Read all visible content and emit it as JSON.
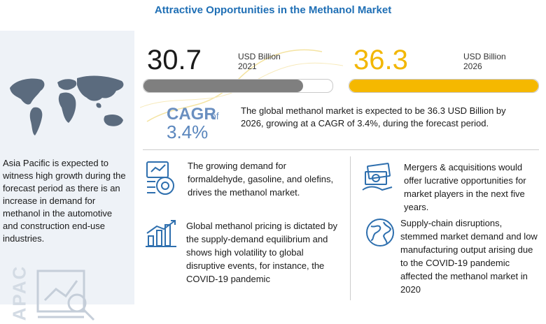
{
  "title": "Attractive Opportunities in the Methanol Market",
  "apac": {
    "description": "Asia Pacific is expected to witness high growth during the forecast period as there is an increase in demand for methanol in the automotive and construction end-use industries.",
    "vertical_label": "APAC"
  },
  "metrics": {
    "m2021": {
      "value": "30.7",
      "unit": "USD Billion",
      "year": "2021",
      "bar_fraction": 0.846,
      "bar_color": "#7f7f7f"
    },
    "m2026": {
      "value": "36.3",
      "unit": "USD Billion",
      "year": "2026",
      "bar_fraction": 1.0,
      "bar_color": "#f5b800"
    }
  },
  "cagr": {
    "label": "CAGR",
    "of": "of",
    "value": "3.4%"
  },
  "market_summary": "The global methanol market is expected to be 36.3 USD Billion by 2026, growing at a CAGR of 3.4%, during the forecast period.",
  "insights": [
    {
      "text": "The growing demand for formaldehyde, gasoline, and olefins, drives the methanol market.",
      "icon": "factory-demand-icon"
    },
    {
      "text": "Mergers & acquisitions would offer lucrative opportunities for market players in the next five years.",
      "icon": "money-bills-icon"
    },
    {
      "text": "Global methanol pricing is dictated by the supply-demand equilibrium and shows high volatility to global disruptive events, for instance, the COVID-19 pandemic",
      "icon": "growth-chart-icon"
    },
    {
      "text": "Supply-chain disruptions, stemmed market demand and low manufacturing output arising due to the COVID-19 pandemic affected the methanol market in 2020",
      "icon": "globe-icon"
    }
  ],
  "colors": {
    "title": "#1f6fb5",
    "accent_yellow": "#f5b800",
    "cagr_blue": "#5a86bd",
    "panel": "#eef2f7"
  }
}
